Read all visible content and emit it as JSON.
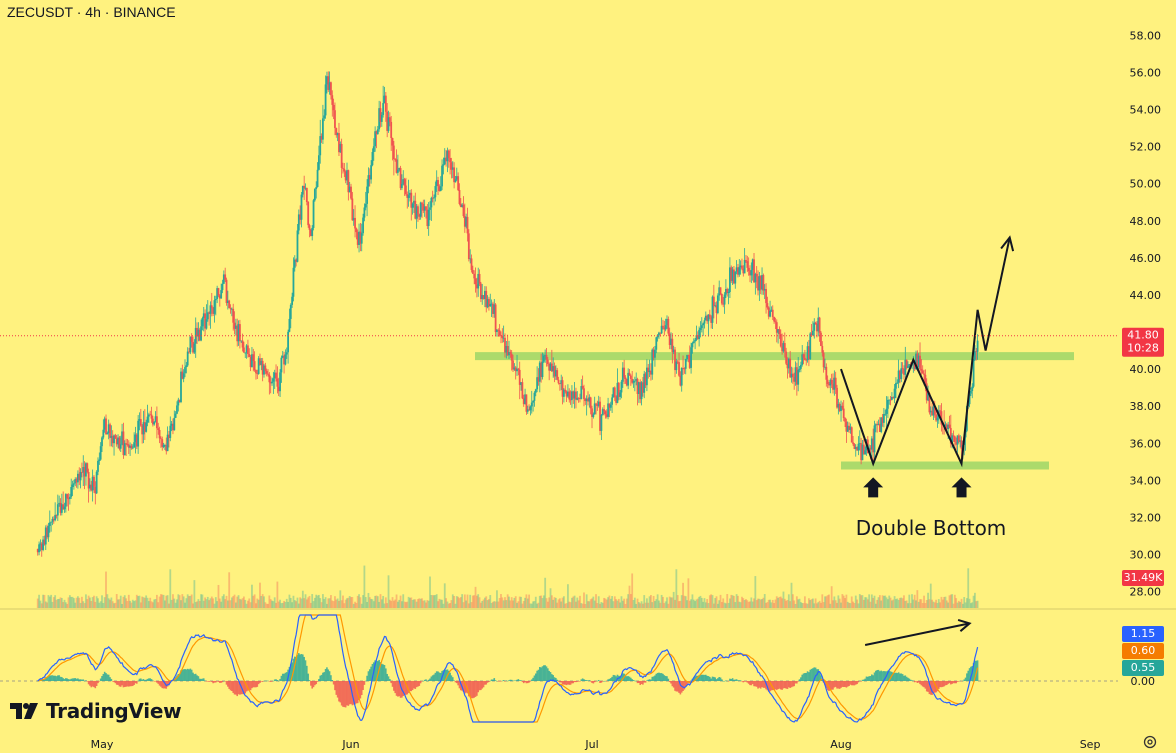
{
  "header": {
    "symbol_title": "ZECUSDT · 4h · BINANCE"
  },
  "branding": {
    "logo_text": "TradingView",
    "logo_icon": "tradingview-logo-icon"
  },
  "colors": {
    "background": "#fff27f",
    "up_candle": "#26a69a",
    "down_candle": "#ef5350",
    "support_band": "#a8d86a",
    "price_label_bg": "#f23645",
    "macd_line": "#2962ff",
    "signal_line": "#ff9800",
    "hist_positive": "#26a69a",
    "hist_negative": "#ef5350"
  },
  "chart_data": [
    {
      "type": "candlestick",
      "title": "ZECUSDT · 4h · BINANCE",
      "x_ticks": [
        "May",
        "Jun",
        "Jul",
        "Aug",
        "Sep"
      ],
      "y_ticks": [
        "28.00",
        "30.00",
        "32.00",
        "34.00",
        "36.00",
        "38.00",
        "40.00",
        "42.00",
        "44.00",
        "46.00",
        "48.00",
        "50.00",
        "52.00",
        "54.00",
        "56.00",
        "58.00"
      ],
      "ylim": [
        27,
        60
      ],
      "price_path": [
        {
          "date": "Apr 23",
          "close": 30.3
        },
        {
          "date": "Apr 26",
          "close": 32.6
        },
        {
          "date": "Apr 29",
          "close": 34.6
        },
        {
          "date": "Apr 30",
          "close": 33.4
        },
        {
          "date": "May 1",
          "close": 36.8
        },
        {
          "date": "May 4",
          "close": 35.8
        },
        {
          "date": "May 7",
          "close": 37.5
        },
        {
          "date": "May 9",
          "close": 35.6
        },
        {
          "date": "May 12",
          "close": 41.3
        },
        {
          "date": "May 16",
          "close": 44.6
        },
        {
          "date": "May 19",
          "close": 40.4
        },
        {
          "date": "May 23",
          "close": 39.3
        },
        {
          "date": "May 24",
          "close": 41.3
        },
        {
          "date": "May 26",
          "close": 50.3
        },
        {
          "date": "May 27",
          "close": 47.4
        },
        {
          "date": "May 29",
          "close": 55.4
        },
        {
          "date": "May 31",
          "close": 51.4
        },
        {
          "date": "Jun 2",
          "close": 46.4
        },
        {
          "date": "Jun 4",
          "close": 52.6
        },
        {
          "date": "Jun 5",
          "close": 54.4
        },
        {
          "date": "Jun 7",
          "close": 50.4
        },
        {
          "date": "Jun 9",
          "close": 48.6
        },
        {
          "date": "Jun 11",
          "close": 48.6
        },
        {
          "date": "Jun 13",
          "close": 51.6
        },
        {
          "date": "Jun 15",
          "close": 48.6
        },
        {
          "date": "Jun 16",
          "close": 45.3
        },
        {
          "date": "Jun 18",
          "close": 43.6
        },
        {
          "date": "Jun 20",
          "close": 41.6
        },
        {
          "date": "Jun 22",
          "close": 39.3
        },
        {
          "date": "Jun 23",
          "close": 37.6
        },
        {
          "date": "Jun 25",
          "close": 40.6
        },
        {
          "date": "Jun 28",
          "close": 38.6
        },
        {
          "date": "Jun 30",
          "close": 38.6
        },
        {
          "date": "Jul 2",
          "close": 37.3
        },
        {
          "date": "Jul 5",
          "close": 39.6
        },
        {
          "date": "Jul 7",
          "close": 38.8
        },
        {
          "date": "Jul 10",
          "close": 42.6
        },
        {
          "date": "Jul 12",
          "close": 39.6
        },
        {
          "date": "Jul 15",
          "close": 42.6
        },
        {
          "date": "Jul 18",
          "close": 44.6
        },
        {
          "date": "Jul 20",
          "close": 45.6
        },
        {
          "date": "Jul 22",
          "close": 44.6
        },
        {
          "date": "Jul 24",
          "close": 42.3
        },
        {
          "date": "Jul 26",
          "close": 39.6
        },
        {
          "date": "Jul 28",
          "close": 41.3
        },
        {
          "date": "Jul 29",
          "close": 42.6
        },
        {
          "date": "Jul 30",
          "close": 39.8
        },
        {
          "date": "Aug 1",
          "close": 37.8
        },
        {
          "date": "Aug 3",
          "close": 35.6
        },
        {
          "date": "Aug 5",
          "close": 36.3
        },
        {
          "date": "Aug 7",
          "close": 38.3
        },
        {
          "date": "Aug 9",
          "close": 40.3
        },
        {
          "date": "Aug 11",
          "close": 40.3
        },
        {
          "date": "Aug 12",
          "close": 37.8
        },
        {
          "date": "Aug 14",
          "close": 36.8
        },
        {
          "date": "Aug 16",
          "close": 35.6
        },
        {
          "date": "Aug 17",
          "close": 38.6
        },
        {
          "date": "Aug 18",
          "close": 41.8
        }
      ],
      "last_price": "41.80",
      "countdown": "10:28",
      "volume_label": "31.49K",
      "annotations": {
        "pattern_label": "Double Bottom",
        "resistance_level": 40.7,
        "support_level": 34.8,
        "zigzag": [
          {
            "date": "Aug 1",
            "price": 40.0
          },
          {
            "date": "Aug 5",
            "price": 34.9
          },
          {
            "date": "Aug 10",
            "price": 40.5
          },
          {
            "date": "Aug 16",
            "price": 34.9
          },
          {
            "date": "Aug 18",
            "price": 43.2
          },
          {
            "date": "Aug 19",
            "price": 41.0
          },
          {
            "date": "Aug 22",
            "price": 47.1
          }
        ],
        "bottom_markers": [
          {
            "date": "Aug 5",
            "price": 34.0
          },
          {
            "date": "Aug 16",
            "price": 34.0
          }
        ]
      }
    },
    {
      "type": "line",
      "series": [
        {
          "name": "MACD",
          "role": "macd"
        },
        {
          "name": "Signal",
          "role": "signal"
        }
      ],
      "y_ticks": [
        "0.00"
      ],
      "labels": {
        "macd": "1.15",
        "signal": "0.60",
        "histogram": "0.55"
      },
      "trend_arrow": [
        {
          "date": "Aug 4",
          "value": 1.0
        },
        {
          "date": "Aug 17",
          "value": 1.6
        }
      ]
    }
  ]
}
